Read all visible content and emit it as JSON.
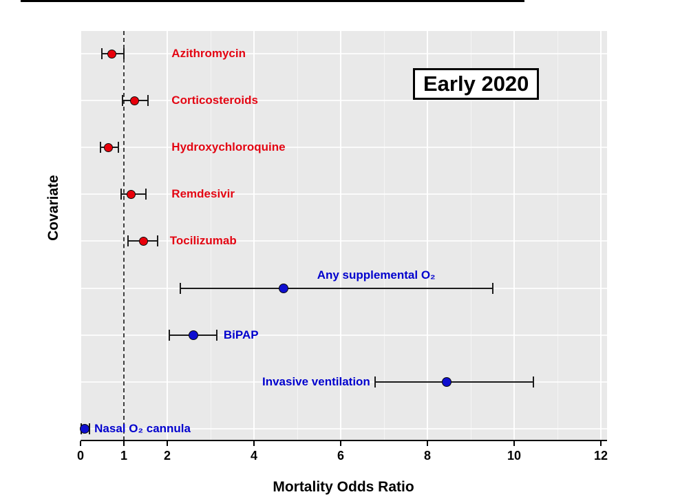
{
  "figure": {
    "annotation_box_label": "Early 2020"
  },
  "chart_data": {
    "type": "scatter",
    "variant": "forest-plot",
    "title": "Early 2020",
    "xlabel": "Mortality Odds Ratio",
    "ylabel": "Covariate",
    "xlim": [
      0,
      12
    ],
    "x_ticks": [
      0,
      1,
      2,
      4,
      6,
      8,
      10,
      12
    ],
    "x_minor_ticks": [
      3,
      5,
      7,
      9,
      11
    ],
    "reference_line_x": 1,
    "grid": true,
    "legend": "none",
    "point_colors": {
      "drug": "#e8000b",
      "oxygen": "#0f0fd0"
    },
    "label_colors": {
      "drug": "#e30613",
      "oxygen": "#0000cd"
    },
    "rows": [
      {
        "label": "Azithromycin",
        "group": "drug",
        "or": 0.73,
        "ci_low": 0.49,
        "ci_high": 1.0,
        "label_align": "left",
        "label_x": 2.1
      },
      {
        "label": "Corticosteroids",
        "group": "drug",
        "or": 1.25,
        "ci_low": 0.97,
        "ci_high": 1.55,
        "label_align": "left",
        "label_x": 2.1
      },
      {
        "label": "Hydroxychloroquine",
        "group": "drug",
        "or": 0.65,
        "ci_low": 0.46,
        "ci_high": 0.87,
        "label_align": "left",
        "label_x": 2.1
      },
      {
        "label": "Remdesivir",
        "group": "drug",
        "or": 1.17,
        "ci_low": 0.94,
        "ci_high": 1.51,
        "label_align": "left",
        "label_x": 2.1
      },
      {
        "label": "Tocilizumab",
        "group": "drug",
        "or": 1.46,
        "ci_low": 1.1,
        "ci_high": 1.78,
        "label_align": "left",
        "label_x": 2.06
      },
      {
        "label": "Any supplemental O₂",
        "group": "oxygen",
        "or": 4.68,
        "ci_low": 2.3,
        "ci_high": 9.5,
        "label_align": "center",
        "label_x": 6.82,
        "label_dy": -19
      },
      {
        "label": "BiPAP",
        "group": "oxygen",
        "or": 2.6,
        "ci_low": 2.05,
        "ci_high": 3.15,
        "label_align": "left",
        "label_x": 3.3
      },
      {
        "label": "Invasive ventilation",
        "group": "oxygen",
        "or": 8.45,
        "ci_low": 6.8,
        "ci_high": 10.45,
        "label_align": "right",
        "label_x": 6.68
      },
      {
        "label": "Nasal O₂ cannula",
        "group": "oxygen",
        "or": 0.1,
        "ci_low": 0.02,
        "ci_high": 0.21,
        "label_align": "left",
        "label_x": 0.32
      }
    ]
  }
}
